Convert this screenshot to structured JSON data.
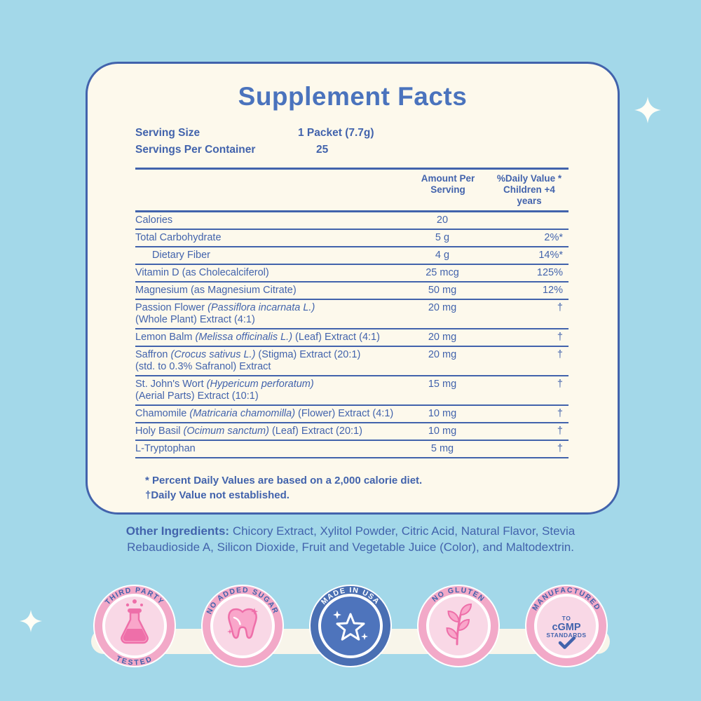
{
  "panel": {
    "title": "Supplement Facts",
    "serving_size_label": "Serving Size",
    "serving_size_value": "1 Packet (7.7g)",
    "servings_per_container_label": "Servings Per Container",
    "servings_per_container_value": "25",
    "columns": {
      "amount": "Amount Per\nServing",
      "daily_value": "%Daily Value *\nChildren +4 years"
    },
    "rows": [
      {
        "lines": [
          [
            {
              "t": "Calories"
            }
          ]
        ],
        "amount": "20",
        "dv": "",
        "indent": false
      },
      {
        "lines": [
          [
            {
              "t": "Total Carbohydrate"
            }
          ]
        ],
        "amount": "5 g",
        "dv": "2%*",
        "indent": false
      },
      {
        "lines": [
          [
            {
              "t": "Dietary Fiber"
            }
          ]
        ],
        "amount": "4 g",
        "dv": "14%*",
        "indent": true
      },
      {
        "lines": [
          [
            {
              "t": "Vitamin D (as Cholecalciferol)"
            }
          ]
        ],
        "amount": "25 mcg",
        "dv": "125%",
        "indent": false
      },
      {
        "lines": [
          [
            {
              "t": "Magnesium (as Magnesium Citrate)"
            }
          ]
        ],
        "amount": "50 mg",
        "dv": "12%",
        "indent": false
      },
      {
        "lines": [
          [
            {
              "t": "Passion Flower "
            },
            {
              "t": "(Passiflora incarnata L.)",
              "i": true
            }
          ],
          [
            {
              "t": "(Whole Plant) Extract (4:1)"
            }
          ]
        ],
        "amount": "20 mg",
        "dv": "†",
        "indent": false
      },
      {
        "lines": [
          [
            {
              "t": "Lemon Balm "
            },
            {
              "t": "(Melissa officinalis L.)",
              "i": true
            },
            {
              "t": " (Leaf) Extract (4:1)"
            }
          ]
        ],
        "amount": "20 mg",
        "dv": "†",
        "indent": false
      },
      {
        "lines": [
          [
            {
              "t": "Saffron "
            },
            {
              "t": "(Crocus sativus L.)",
              "i": true
            },
            {
              "t": " (Stigma) Extract (20:1)"
            }
          ],
          [
            {
              "t": "(std. to 0.3% Safranol) Extract"
            }
          ]
        ],
        "amount": "20 mg",
        "dv": "†",
        "indent": false
      },
      {
        "lines": [
          [
            {
              "t": "St. John's Wort "
            },
            {
              "t": "(Hypericum perforatum)",
              "i": true
            }
          ],
          [
            {
              "t": "(Aerial Parts) Extract (10:1)"
            }
          ]
        ],
        "amount": "15 mg",
        "dv": "†",
        "indent": false
      },
      {
        "lines": [
          [
            {
              "t": "Chamomile "
            },
            {
              "t": "(Matricaria chamomilla)",
              "i": true
            },
            {
              "t": " (Flower) Extract (4:1)"
            }
          ]
        ],
        "amount": "10 mg",
        "dv": "†",
        "indent": false
      },
      {
        "lines": [
          [
            {
              "t": "Holy Basil "
            },
            {
              "t": "(Ocimum sanctum)",
              "i": true
            },
            {
              "t": " (Leaf) Extract (20:1)"
            }
          ]
        ],
        "amount": "10 mg",
        "dv": "†",
        "indent": false
      },
      {
        "lines": [
          [
            {
              "t": "L-Tryptophan"
            }
          ]
        ],
        "amount": "5 mg",
        "dv": "†",
        "indent": false
      }
    ],
    "footnotes": [
      "* Percent Daily Values are based on a 2,000 calorie diet.",
      "†Daily Value not established."
    ]
  },
  "other_ingredients": {
    "label": "Other Ingredients:",
    "text": " Chicory Extract, Xylitol Powder, Citric Acid, Natural Flavor, Stevia Rebaudioside A, Silicon Dioxide, Fruit and Vegetable Juice (Color), and Maltodextrin."
  },
  "badges": [
    {
      "id": "third-party-tested",
      "top": "THIRD PARTY",
      "bottom": "TESTED",
      "icon": "flask",
      "style": "pink"
    },
    {
      "id": "no-added-sugar",
      "top": "NO ADDED SUGAR",
      "bottom": "",
      "icon": "tooth",
      "style": "pink"
    },
    {
      "id": "made-in-usa",
      "top": "MADE IN USA",
      "bottom": "",
      "icon": "star",
      "style": "blue"
    },
    {
      "id": "no-gluten",
      "top": "NO GLUTEN",
      "bottom": "",
      "icon": "wheat",
      "style": "pink"
    },
    {
      "id": "manufactured-cgmp",
      "top": "MANUFACTURED",
      "bottom": "",
      "icon": "check",
      "style": "pink",
      "center_lines": [
        "TO",
        "cGMP",
        "STANDARDS"
      ]
    }
  ],
  "colors": {
    "background": "#a3d8e9",
    "card": "#fdf9ec",
    "blue": "#4263ac",
    "pink_ring": "#f2a9c8",
    "pink_inner": "#f9d8e6",
    "pink_icon": "#ee6fa9",
    "blue_ring": "#4a6fb3",
    "blue_badge_inner": "#4e74bc"
  }
}
